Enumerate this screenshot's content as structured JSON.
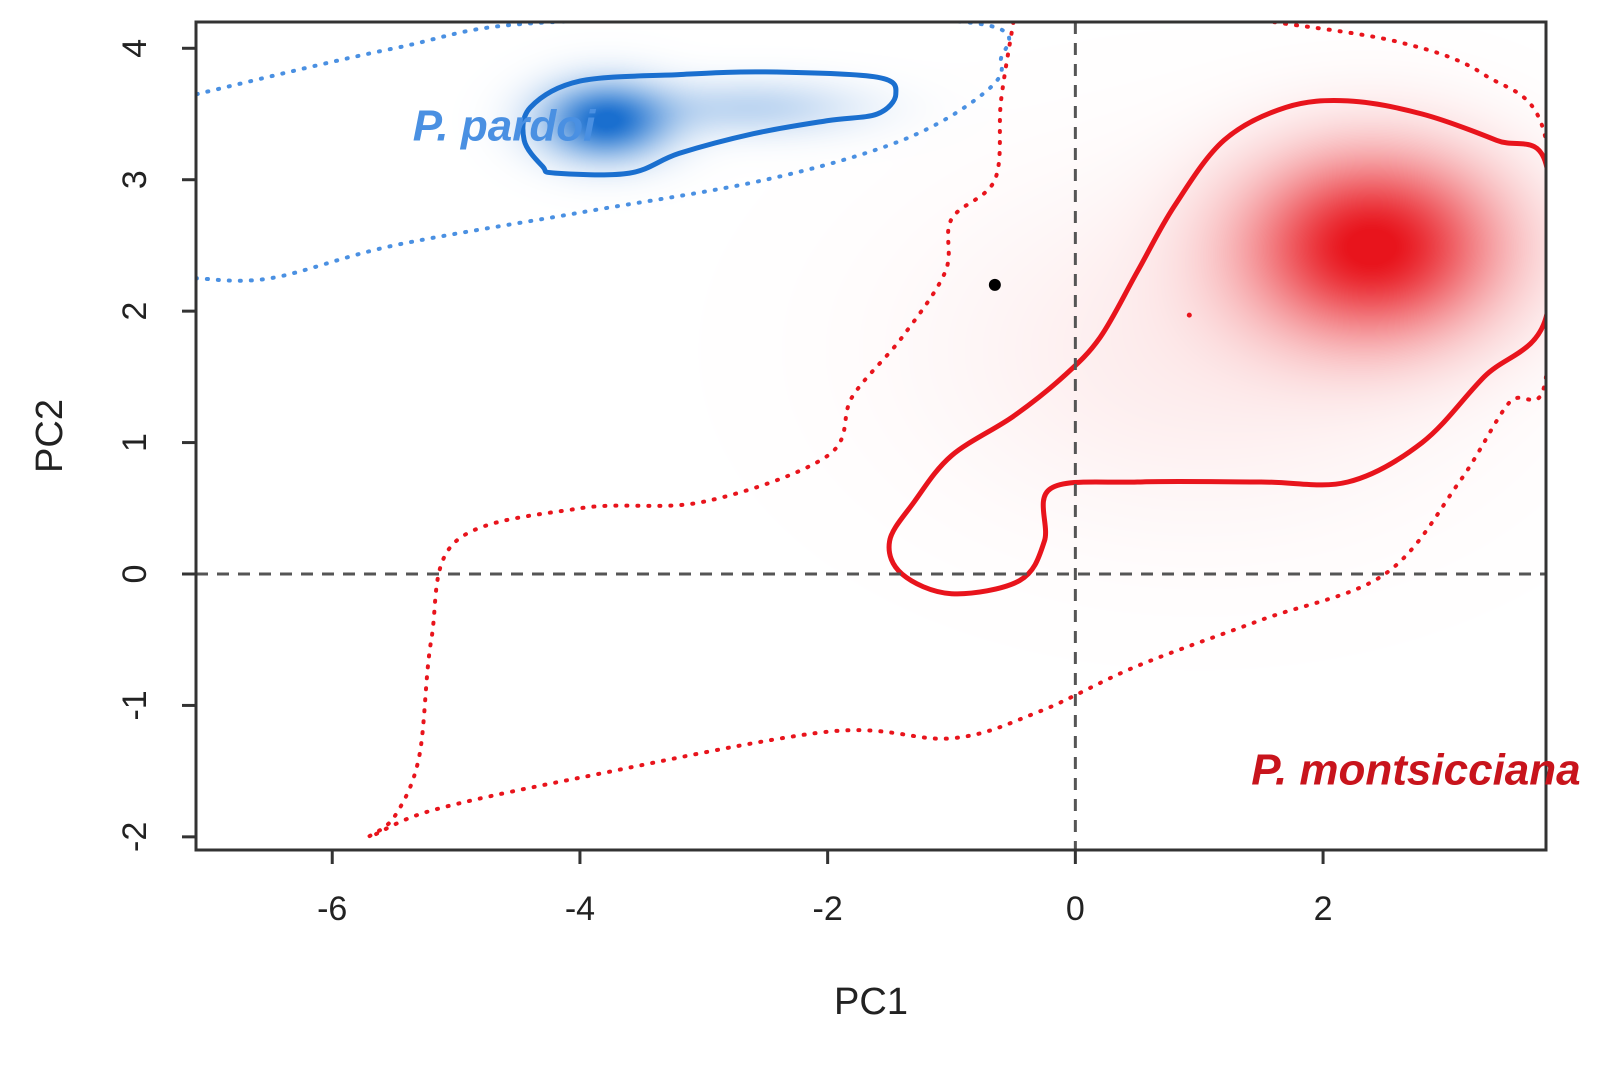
{
  "chart_data": {
    "type": "density-contour",
    "title": "",
    "xlabel": "PC1",
    "ylabel": "PC2",
    "xlim": [
      -7.1,
      3.8
    ],
    "ylim": [
      -2.1,
      4.2
    ],
    "x_ticks": [
      -6,
      -4,
      -2,
      0,
      2
    ],
    "y_ticks": [
      -2,
      -1,
      0,
      1,
      2,
      3,
      4
    ],
    "x_tick_labels": [
      "-6",
      "-4",
      "-2",
      "0",
      "2"
    ],
    "y_tick_labels": [
      "-2",
      "-1",
      "0",
      "1",
      "2",
      "3",
      "4"
    ],
    "reference_lines": {
      "x": 0,
      "y": 0,
      "style": "dashed"
    },
    "colors": {
      "pardoi": "#1a6fcf",
      "pardoi_dotted": "#4a90e2",
      "montsicciana": "#e8141c",
      "montsicciana_label": "#c8141c"
    },
    "series": [
      {
        "name": "P. pardoi",
        "color": "#1a6fcf",
        "label_text": "P. pardoi",
        "label_position": [
          -5.35,
          3.3
        ],
        "density_peaks": [
          {
            "x": -3.8,
            "y": 3.45,
            "sx": 0.35,
            "sy": 0.2,
            "weight": 1.0
          },
          {
            "x": -2.6,
            "y": 3.55,
            "sx": 0.6,
            "sy": 0.15,
            "weight": 0.28
          }
        ],
        "solid_contour": [
          [
            -4.2,
            3.05
          ],
          [
            -3.6,
            3.05
          ],
          [
            -3.2,
            3.2
          ],
          [
            -2.6,
            3.35
          ],
          [
            -2.0,
            3.45
          ],
          [
            -1.6,
            3.5
          ],
          [
            -1.45,
            3.65
          ],
          [
            -1.6,
            3.78
          ],
          [
            -2.5,
            3.82
          ],
          [
            -3.2,
            3.8
          ],
          [
            -4.0,
            3.75
          ],
          [
            -4.4,
            3.55
          ],
          [
            -4.45,
            3.3
          ],
          [
            -4.3,
            3.1
          ]
        ],
        "dotted_contour": [
          [
            -7.1,
            2.25
          ],
          [
            -6.5,
            2.25
          ],
          [
            -5.5,
            2.5
          ],
          [
            -4.0,
            2.75
          ],
          [
            -2.5,
            3.0
          ],
          [
            -1.4,
            3.3
          ],
          [
            -0.75,
            3.65
          ],
          [
            -0.6,
            3.9
          ],
          [
            -0.9,
            4.2
          ],
          [
            -4.2,
            4.2
          ],
          [
            -5.5,
            4.0
          ],
          [
            -7.1,
            3.65
          ]
        ]
      },
      {
        "name": "P. montsicciana",
        "color": "#e8141c",
        "label_text": "P. montsicciana",
        "label_position": [
          2.75,
          -1.6
        ],
        "density_peaks": [
          {
            "x": 2.4,
            "y": 2.5,
            "sx": 0.7,
            "sy": 0.48,
            "weight": 1.0
          },
          {
            "x": 1.0,
            "y": 1.7,
            "sx": 1.5,
            "sy": 0.9,
            "weight": 0.08
          }
        ],
        "points": [
          {
            "x": -0.65,
            "y": 2.2,
            "color": "#000000"
          },
          {
            "x": 0.92,
            "y": 1.97,
            "color": "#e8141c"
          }
        ],
        "solid_contour": [
          [
            -1.5,
            0.25
          ],
          [
            -1.3,
            0.55
          ],
          [
            -1.0,
            0.9
          ],
          [
            -0.5,
            1.2
          ],
          [
            -0.1,
            1.5
          ],
          [
            0.2,
            1.8
          ],
          [
            0.5,
            2.3
          ],
          [
            0.8,
            2.8
          ],
          [
            1.2,
            3.3
          ],
          [
            1.7,
            3.55
          ],
          [
            2.2,
            3.6
          ],
          [
            2.8,
            3.5
          ],
          [
            3.4,
            3.3
          ],
          [
            3.8,
            3.12
          ],
          [
            3.8,
            1.95
          ],
          [
            3.3,
            1.5
          ],
          [
            2.8,
            1.0
          ],
          [
            2.2,
            0.7
          ],
          [
            1.5,
            0.7
          ],
          [
            0.5,
            0.7
          ],
          [
            -0.2,
            0.65
          ],
          [
            -0.25,
            0.25
          ],
          [
            -0.45,
            -0.05
          ],
          [
            -1.0,
            -0.15
          ],
          [
            -1.4,
            0.0
          ]
        ],
        "dotted_contour": [
          [
            -0.5,
            4.2
          ],
          [
            -0.6,
            3.6
          ],
          [
            -0.65,
            3.0
          ],
          [
            -1.0,
            2.7
          ],
          [
            -1.05,
            2.3
          ],
          [
            -1.4,
            1.8
          ],
          [
            -1.8,
            1.35
          ],
          [
            -2.0,
            0.9
          ],
          [
            -3.0,
            0.55
          ],
          [
            -4.0,
            0.5
          ],
          [
            -5.0,
            0.25
          ],
          [
            -5.2,
            -0.5
          ],
          [
            -5.3,
            -1.4
          ],
          [
            -5.5,
            -1.85
          ],
          [
            -5.7,
            -2.0
          ],
          [
            -5.2,
            -1.8
          ],
          [
            -4.0,
            -1.55
          ],
          [
            -2.0,
            -1.2
          ],
          [
            -1.0,
            -1.25
          ],
          [
            -0.3,
            -1.05
          ],
          [
            0.5,
            -0.7
          ],
          [
            1.5,
            -0.35
          ],
          [
            2.5,
            0.0
          ],
          [
            3.1,
            0.7
          ],
          [
            3.5,
            1.3
          ],
          [
            3.8,
            1.5
          ],
          [
            3.8,
            3.3
          ],
          [
            3.3,
            3.8
          ],
          [
            2.6,
            4.05
          ],
          [
            1.6,
            4.2
          ]
        ]
      }
    ]
  }
}
